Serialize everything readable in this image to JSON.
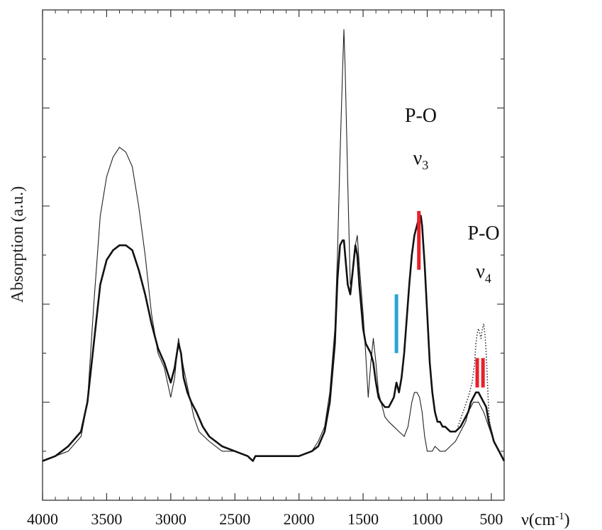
{
  "chart_data": {
    "type": "line",
    "xlabel": "ν(cm",
    "xlabel_sup": "-1",
    "xlabel_close": ")",
    "ylabel": "Absorption (a.u.)",
    "xlim": [
      4000,
      400
    ],
    "ylim": [
      0,
      1.0
    ],
    "x_ticks": [
      4000,
      3500,
      3000,
      2500,
      2000,
      1500,
      1000,
      500
    ],
    "grid": false,
    "annotations": [
      {
        "text": "P-O",
        "sub_base": "ν",
        "sub": "3",
        "x": 1050
      },
      {
        "text": "P-O",
        "sub_base": "ν",
        "sub": "4",
        "x": 560
      }
    ],
    "markers": [
      {
        "x": 1240,
        "y_from": 0.3,
        "y_to": 0.42,
        "color": "#29a3d6"
      },
      {
        "x": 1065,
        "y_from": 0.47,
        "y_to": 0.59,
        "color": "#e8202a"
      },
      {
        "x": 610,
        "y_from": 0.23,
        "y_to": 0.29,
        "color": "#e8202a"
      },
      {
        "x": 565,
        "y_from": 0.23,
        "y_to": 0.29,
        "color": "#e8202a"
      }
    ],
    "series": [
      {
        "style": "thin",
        "color": "#222222",
        "points": [
          [
            4000,
            0.08
          ],
          [
            3900,
            0.09
          ],
          [
            3800,
            0.1
          ],
          [
            3700,
            0.13
          ],
          [
            3650,
            0.2
          ],
          [
            3600,
            0.4
          ],
          [
            3550,
            0.58
          ],
          [
            3500,
            0.66
          ],
          [
            3450,
            0.7
          ],
          [
            3400,
            0.72
          ],
          [
            3350,
            0.71
          ],
          [
            3300,
            0.68
          ],
          [
            3250,
            0.6
          ],
          [
            3200,
            0.5
          ],
          [
            3150,
            0.38
          ],
          [
            3100,
            0.3
          ],
          [
            3050,
            0.27
          ],
          [
            3000,
            0.21
          ],
          [
            2970,
            0.25
          ],
          [
            2940,
            0.33
          ],
          [
            2920,
            0.3
          ],
          [
            2900,
            0.27
          ],
          [
            2860,
            0.22
          ],
          [
            2820,
            0.17
          ],
          [
            2780,
            0.14
          ],
          [
            2700,
            0.12
          ],
          [
            2600,
            0.1
          ],
          [
            2500,
            0.1
          ],
          [
            2400,
            0.09
          ],
          [
            2360,
            0.08
          ],
          [
            2340,
            0.09
          ],
          [
            2300,
            0.09
          ],
          [
            2200,
            0.09
          ],
          [
            2100,
            0.09
          ],
          [
            2000,
            0.09
          ],
          [
            1900,
            0.1
          ],
          [
            1850,
            0.12
          ],
          [
            1800,
            0.15
          ],
          [
            1760,
            0.22
          ],
          [
            1720,
            0.35
          ],
          [
            1700,
            0.5
          ],
          [
            1680,
            0.7
          ],
          [
            1660,
            0.88
          ],
          [
            1650,
            0.96
          ],
          [
            1640,
            0.88
          ],
          [
            1620,
            0.65
          ],
          [
            1600,
            0.44
          ],
          [
            1580,
            0.46
          ],
          [
            1560,
            0.52
          ],
          [
            1545,
            0.54
          ],
          [
            1530,
            0.48
          ],
          [
            1500,
            0.38
          ],
          [
            1480,
            0.3
          ],
          [
            1460,
            0.21
          ],
          [
            1440,
            0.28
          ],
          [
            1420,
            0.33
          ],
          [
            1400,
            0.28
          ],
          [
            1380,
            0.22
          ],
          [
            1360,
            0.2
          ],
          [
            1330,
            0.17
          ],
          [
            1300,
            0.16
          ],
          [
            1260,
            0.15
          ],
          [
            1220,
            0.14
          ],
          [
            1180,
            0.13
          ],
          [
            1150,
            0.15
          ],
          [
            1120,
            0.2
          ],
          [
            1100,
            0.22
          ],
          [
            1080,
            0.22
          ],
          [
            1060,
            0.21
          ],
          [
            1040,
            0.18
          ],
          [
            1020,
            0.13
          ],
          [
            1000,
            0.1
          ],
          [
            980,
            0.1
          ],
          [
            960,
            0.1
          ],
          [
            940,
            0.11
          ],
          [
            900,
            0.1
          ],
          [
            860,
            0.1
          ],
          [
            820,
            0.11
          ],
          [
            780,
            0.12
          ],
          [
            740,
            0.14
          ],
          [
            700,
            0.16
          ],
          [
            680,
            0.18
          ],
          [
            660,
            0.19
          ],
          [
            640,
            0.2
          ],
          [
            620,
            0.2
          ],
          [
            600,
            0.2
          ],
          [
            580,
            0.19
          ],
          [
            560,
            0.18
          ],
          [
            520,
            0.15
          ],
          [
            480,
            0.12
          ],
          [
            440,
            0.1
          ],
          [
            400,
            0.08
          ]
        ]
      },
      {
        "style": "thick",
        "color": "#111111",
        "points": [
          [
            4000,
            0.08
          ],
          [
            3900,
            0.09
          ],
          [
            3800,
            0.11
          ],
          [
            3700,
            0.14
          ],
          [
            3650,
            0.2
          ],
          [
            3600,
            0.32
          ],
          [
            3550,
            0.44
          ],
          [
            3500,
            0.49
          ],
          [
            3450,
            0.51
          ],
          [
            3400,
            0.52
          ],
          [
            3350,
            0.52
          ],
          [
            3300,
            0.51
          ],
          [
            3250,
            0.47
          ],
          [
            3200,
            0.42
          ],
          [
            3150,
            0.36
          ],
          [
            3100,
            0.31
          ],
          [
            3050,
            0.28
          ],
          [
            3000,
            0.24
          ],
          [
            2970,
            0.27
          ],
          [
            2940,
            0.32
          ],
          [
            2920,
            0.3
          ],
          [
            2900,
            0.25
          ],
          [
            2870,
            0.22
          ],
          [
            2840,
            0.2
          ],
          [
            2800,
            0.18
          ],
          [
            2750,
            0.15
          ],
          [
            2700,
            0.13
          ],
          [
            2600,
            0.11
          ],
          [
            2500,
            0.1
          ],
          [
            2400,
            0.09
          ],
          [
            2360,
            0.08
          ],
          [
            2340,
            0.09
          ],
          [
            2300,
            0.09
          ],
          [
            2200,
            0.09
          ],
          [
            2100,
            0.09
          ],
          [
            2000,
            0.09
          ],
          [
            1900,
            0.1
          ],
          [
            1850,
            0.11
          ],
          [
            1800,
            0.14
          ],
          [
            1760,
            0.2
          ],
          [
            1720,
            0.32
          ],
          [
            1700,
            0.45
          ],
          [
            1680,
            0.52
          ],
          [
            1660,
            0.53
          ],
          [
            1650,
            0.53
          ],
          [
            1640,
            0.5
          ],
          [
            1620,
            0.44
          ],
          [
            1600,
            0.42
          ],
          [
            1580,
            0.47
          ],
          [
            1560,
            0.52
          ],
          [
            1545,
            0.5
          ],
          [
            1530,
            0.44
          ],
          [
            1500,
            0.35
          ],
          [
            1480,
            0.32
          ],
          [
            1460,
            0.31
          ],
          [
            1440,
            0.3
          ],
          [
            1420,
            0.28
          ],
          [
            1400,
            0.24
          ],
          [
            1380,
            0.21
          ],
          [
            1360,
            0.2
          ],
          [
            1330,
            0.19
          ],
          [
            1300,
            0.19
          ],
          [
            1280,
            0.2
          ],
          [
            1260,
            0.21
          ],
          [
            1240,
            0.24
          ],
          [
            1220,
            0.22
          ],
          [
            1200,
            0.25
          ],
          [
            1180,
            0.3
          ],
          [
            1160,
            0.37
          ],
          [
            1140,
            0.44
          ],
          [
            1120,
            0.5
          ],
          [
            1100,
            0.54
          ],
          [
            1080,
            0.56
          ],
          [
            1060,
            0.58
          ],
          [
            1050,
            0.58
          ],
          [
            1040,
            0.56
          ],
          [
            1020,
            0.48
          ],
          [
            1000,
            0.38
          ],
          [
            980,
            0.28
          ],
          [
            960,
            0.22
          ],
          [
            940,
            0.18
          ],
          [
            920,
            0.16
          ],
          [
            900,
            0.16
          ],
          [
            880,
            0.15
          ],
          [
            860,
            0.15
          ],
          [
            820,
            0.14
          ],
          [
            780,
            0.14
          ],
          [
            740,
            0.15
          ],
          [
            700,
            0.17
          ],
          [
            680,
            0.18
          ],
          [
            660,
            0.2
          ],
          [
            640,
            0.21
          ],
          [
            620,
            0.22
          ],
          [
            600,
            0.22
          ],
          [
            580,
            0.21
          ],
          [
            560,
            0.2
          ],
          [
            540,
            0.19
          ],
          [
            520,
            0.16
          ],
          [
            480,
            0.12
          ],
          [
            440,
            0.1
          ],
          [
            400,
            0.08
          ]
        ]
      },
      {
        "style": "dotted",
        "color": "#333333",
        "points": [
          [
            760,
            0.15
          ],
          [
            720,
            0.18
          ],
          [
            680,
            0.21
          ],
          [
            650,
            0.24
          ],
          [
            630,
            0.28
          ],
          [
            620,
            0.32
          ],
          [
            610,
            0.34
          ],
          [
            600,
            0.35
          ],
          [
            590,
            0.34
          ],
          [
            580,
            0.33
          ],
          [
            570,
            0.35
          ],
          [
            560,
            0.36
          ],
          [
            550,
            0.34
          ],
          [
            540,
            0.3
          ],
          [
            530,
            0.24
          ],
          [
            520,
            0.18
          ],
          [
            505,
            0.14
          ]
        ]
      }
    ]
  }
}
